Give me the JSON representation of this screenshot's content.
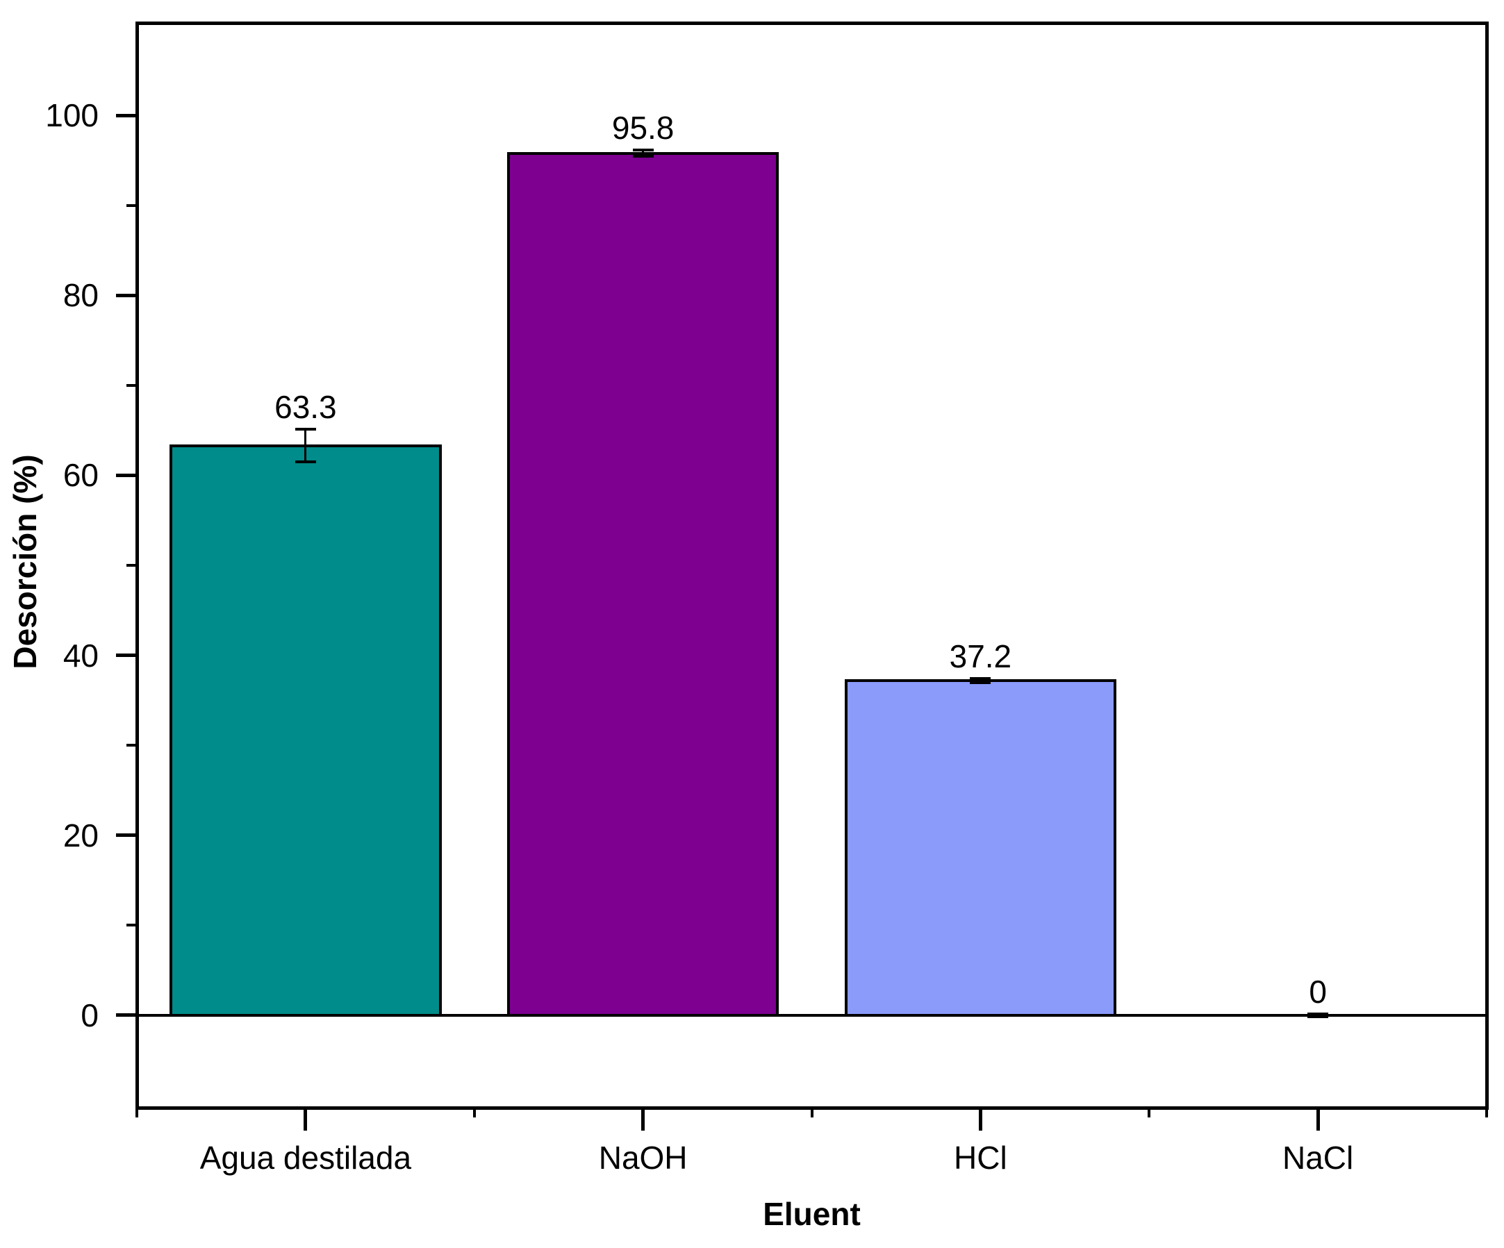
{
  "figure": {
    "background": "#ffffff",
    "frame_color": "#000000",
    "text_color": "#000000"
  },
  "chart_data": {
    "type": "bar",
    "title": "",
    "categories": [
      "Agua destilada",
      "NaOH",
      "HCl",
      "NaCl"
    ],
    "values": [
      63.3,
      95.8,
      37.2,
      0
    ],
    "data_labels": [
      "63.3",
      "95.8",
      "37.2",
      "0"
    ],
    "error_bars": [
      1.8,
      0.35,
      0.25,
      0.15
    ],
    "bar_colors": [
      "#008C8A",
      "#7D0091",
      "#8A9BFA",
      null
    ],
    "bar_edge_color": "#000000",
    "xlabel": "Eluent",
    "ylabel": "Desorción (%)",
    "ylim": [
      -10.3,
      110.3
    ],
    "yticks": [
      0,
      20,
      40,
      60,
      80,
      100
    ],
    "yticklabels": [
      "0",
      "20",
      "40",
      "60",
      "80",
      "100"
    ],
    "yminorticks": [
      10,
      30,
      50,
      70,
      90
    ],
    "grid": false,
    "legend": null,
    "error_color": "#000000"
  }
}
